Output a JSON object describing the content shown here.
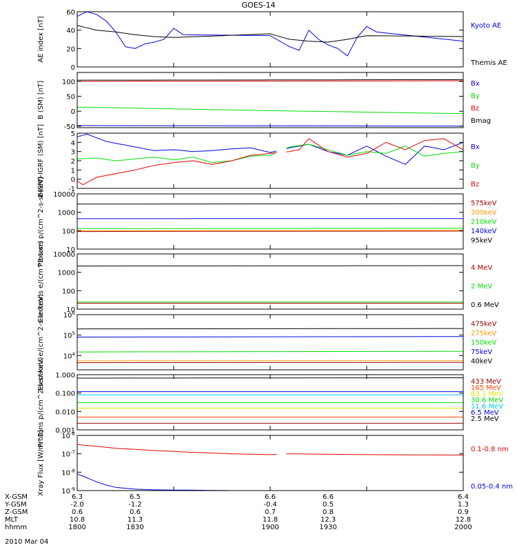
{
  "title": "GOES-14",
  "date": "2010 Mar 04",
  "colors": {
    "black": "#000000",
    "blue": "#0000e0",
    "green": "#00dd00",
    "red": "#e00000",
    "orange": "#ff9900",
    "cyan": "#00c8e8",
    "darkred": "#aa0000",
    "maroon": "#990000",
    "orangered": "#ff4400",
    "yellow": "#e6e600",
    "darkorange": "#ee7700"
  },
  "chart_data": [
    {
      "type": "line",
      "id": "ae",
      "ylabel": "AE index [nT]",
      "ylim": [
        0,
        60
      ],
      "log": false,
      "yticks": [
        0,
        20,
        40,
        60
      ],
      "yticklabels": [
        "0",
        "20",
        "40",
        "60"
      ],
      "xlim": [
        1800,
        2000
      ],
      "series": [
        {
          "name": "Kyoto AE",
          "color": "#0000e0",
          "x": [
            1800,
            1805,
            1810,
            1815,
            1820,
            1825,
            1830,
            1835,
            1840,
            1845,
            1850,
            1855,
            1900,
            1905,
            1910,
            1915,
            1920,
            1925,
            1930,
            1935,
            1940,
            1945,
            1950,
            1955,
            2000
          ],
          "y": [
            55,
            60,
            57,
            50,
            38,
            22,
            20,
            25,
            27,
            30,
            42,
            35,
            34,
            28,
            22,
            18,
            40,
            30,
            24,
            20,
            12,
            32,
            44,
            38,
            28
          ]
        },
        {
          "name": "Themis AE",
          "color": "#000000",
          "x": [
            1800,
            1810,
            1820,
            1830,
            1840,
            1850,
            1900,
            1910,
            1920,
            1930,
            1940,
            1950,
            2000
          ],
          "y": [
            45,
            40,
            38,
            35,
            33,
            32,
            36,
            30,
            28,
            27,
            30,
            34,
            33
          ]
        }
      ]
    },
    {
      "type": "line",
      "id": "b",
      "gap": [
        1904,
        1908
      ],
      "ylabel": "B (SM) [nT]",
      "ylim": [
        -55,
        130
      ],
      "log": false,
      "yticks": [
        -50,
        0,
        50,
        100
      ],
      "yticklabels": [
        "-50",
        "0",
        "50",
        "100"
      ],
      "xlim": [
        1800,
        2000
      ],
      "series": [
        {
          "name": "Bx",
          "color": "#0000e0",
          "x": [
            1800,
            2000
          ],
          "y": [
            -48,
            -50
          ]
        },
        {
          "name": "By",
          "color": "#00dd00",
          "x": [
            1800,
            1900,
            2000
          ],
          "y": [
            14,
            2,
            -8
          ]
        },
        {
          "name": "Bz",
          "color": "#e00000",
          "x": [
            1800,
            2000
          ],
          "y": [
            100,
            102
          ]
        },
        {
          "name": "Bmag",
          "color": "#000000",
          "x": [
            1800,
            2000
          ],
          "y": [
            104,
            106
          ]
        }
      ]
    },
    {
      "type": "line",
      "id": "bdiff",
      "gap": [
        1904,
        1908
      ],
      "ylabel": "B(SM)-IGRF (SM) [nT]",
      "ylim": [
        -1,
        5
      ],
      "log": false,
      "yticks": [
        -1,
        0,
        1,
        2,
        3,
        4,
        5
      ],
      "yticklabels": [
        "-1",
        "0",
        "1",
        "2",
        "3",
        "4",
        "5"
      ],
      "xlim": [
        1800,
        2000
      ],
      "series": [
        {
          "name": "Bx",
          "color": "#0000e0",
          "x": [
            1800,
            1805,
            1810,
            1815,
            1820,
            1830,
            1840,
            1850,
            1860,
            1870,
            1880,
            1890,
            1900,
            1910,
            1920,
            1930,
            1940,
            1950,
            1960,
            1970,
            1980,
            1990,
            2000
          ],
          "y": [
            4.6,
            4.9,
            4.5,
            4.1,
            3.9,
            3.5,
            3.1,
            3.2,
            3.0,
            3.1,
            3.3,
            3.4,
            2.9,
            3.4,
            3.8,
            3.0,
            2.6,
            3.6,
            2.5,
            1.6,
            3.6,
            3.2,
            4.0
          ]
        },
        {
          "name": "By",
          "color": "#00dd00",
          "x": [
            1800,
            1810,
            1820,
            1830,
            1840,
            1850,
            1860,
            1870,
            1880,
            1890,
            1900,
            1910,
            1920,
            1930,
            1940,
            1950,
            1960,
            1970,
            1980,
            1990,
            2000
          ],
          "y": [
            2.2,
            2.3,
            2.0,
            2.2,
            2.4,
            2.1,
            2.4,
            1.8,
            2.0,
            2.5,
            2.6,
            3.5,
            3.8,
            3.2,
            2.6,
            3.0,
            2.8,
            3.6,
            2.5,
            2.8,
            3.0
          ]
        },
        {
          "name": "Bz",
          "color": "#e00000",
          "x": [
            1800,
            1803,
            1810,
            1820,
            1830,
            1840,
            1850,
            1860,
            1870,
            1880,
            1890,
            1900,
            1910,
            1915,
            1920,
            1930,
            1940,
            1950,
            1960,
            1970,
            1980,
            1990,
            2000
          ],
          "y": [
            -0.2,
            -0.6,
            0.2,
            0.6,
            1.0,
            1.5,
            1.8,
            2.0,
            1.6,
            2.0,
            2.6,
            2.8,
            3.0,
            3.2,
            4.4,
            3.0,
            2.4,
            2.8,
            4.0,
            3.2,
            4.2,
            4.4,
            3.2
          ]
        }
      ]
    },
    {
      "type": "line",
      "id": "protons1",
      "gap": [
        1904,
        1908
      ],
      "ylabel": "Protons p/(cm^2-s-sr-keV)",
      "ylim": [
        10,
        10000
      ],
      "log": true,
      "yticks": [
        10,
        100,
        1000,
        10000
      ],
      "yticklabels": [
        "10",
        "100",
        "1000",
        "10000"
      ],
      "xlim": [
        1800,
        2000
      ],
      "series": [
        {
          "name": "575keV",
          "color": "#aa0000",
          "x": [
            1800,
            2000
          ],
          "y": [
            90,
            95
          ]
        },
        {
          "name": "300keV",
          "color": "#ff9900",
          "x": [
            1800,
            2000
          ],
          "y": [
            100,
            105
          ]
        },
        {
          "name": "210keV",
          "color": "#00dd00",
          "x": [
            1800,
            2000
          ],
          "y": [
            130,
            135
          ]
        },
        {
          "name": "140keV",
          "color": "#0000e0",
          "x": [
            1800,
            2000
          ],
          "y": [
            450,
            460
          ]
        },
        {
          "name": "95keV",
          "color": "#000000",
          "x": [
            1800,
            2000
          ],
          "y": [
            2800,
            2900
          ]
        }
      ]
    },
    {
      "type": "line",
      "id": "electrons1",
      "gap": [
        1904,
        1908
      ],
      "ylabel": "Electrons e/(cm^2-s-sr)",
      "ylim": [
        10,
        10000
      ],
      "log": true,
      "yticks": [
        10,
        100,
        1000,
        10000
      ],
      "yticklabels": [
        "10",
        "100",
        "1000",
        "10000"
      ],
      "xlim": [
        1800,
        2000
      ],
      "series": [
        {
          "name": "4 MeV",
          "color": "#aa0000",
          "x": [
            1800,
            2000
          ],
          "y": [
            21,
            21
          ]
        },
        {
          "name": "2 MeV",
          "color": "#00dd00",
          "x": [
            1800,
            2000
          ],
          "y": [
            24,
            24
          ]
        },
        {
          "name": "0.6 MeV",
          "color": "#000000",
          "x": [
            1800,
            2000
          ],
          "y": [
            2200,
            2300
          ]
        }
      ]
    },
    {
      "type": "line",
      "id": "electrons2",
      "gap": [
        1904,
        1908
      ],
      "ylabel": "Electrons e/(cm^2-s-sr-keV)",
      "ylim": [
        2000,
        1000000
      ],
      "log": true,
      "yticks": [
        10000,
        100000,
        1000000
      ],
      "yticklabels": [
        "10^4",
        "10^5",
        "10^6"
      ],
      "xlim": [
        1800,
        2000
      ],
      "series": [
        {
          "name": "475keV",
          "color": "#990000",
          "x": [
            1800,
            2000
          ],
          "y": [
            4500,
            4600
          ]
        },
        {
          "name": "275keV",
          "color": "#ff9900",
          "x": [
            1800,
            2000
          ],
          "y": [
            5500,
            5600
          ]
        },
        {
          "name": "150keV",
          "color": "#00dd00",
          "x": [
            1800,
            2000
          ],
          "y": [
            15000,
            16000
          ]
        },
        {
          "name": "75keV",
          "color": "#0000e0",
          "x": [
            1800,
            2000
          ],
          "y": [
            80000,
            85000
          ]
        },
        {
          "name": "40keV",
          "color": "#000000",
          "x": [
            1800,
            2000
          ],
          "y": [
            200000,
            210000
          ]
        }
      ]
    },
    {
      "type": "line",
      "id": "protons2",
      "gap": [
        1904,
        1908
      ],
      "ylabel": "Protons p/(cm^2-s-sr-keV)",
      "ylim": [
        0.001,
        1.0
      ],
      "log": true,
      "yticks": [
        0.001,
        0.01,
        0.1,
        1.0
      ],
      "yticklabels": [
        "0.001",
        "0.010",
        "0.100",
        "1.000"
      ],
      "xlim": [
        1800,
        2000
      ],
      "series": [
        {
          "name": "433 MeV",
          "color": "#990000",
          "x": [
            1800,
            2000
          ],
          "y": [
            0.0023,
            0.0023
          ]
        },
        {
          "name": "165 MeV",
          "color": "#ff4400",
          "x": [
            1800,
            2000
          ],
          "y": [
            0.005,
            0.005
          ]
        },
        {
          "name": "63.1 MeV",
          "color": "#e6e600",
          "x": [
            1800,
            2000
          ],
          "y": [
            0.015,
            0.015
          ]
        },
        {
          "name": "30.6 MeV",
          "color": "#00dd00",
          "x": [
            1800,
            2000
          ],
          "y": [
            0.03,
            0.03
          ]
        },
        {
          "name": "11.6 MeV",
          "color": "#00c8e8",
          "x": [
            1800,
            2000
          ],
          "y": [
            0.08,
            0.08
          ]
        },
        {
          "name": "6.5 MeV",
          "color": "#0000e0",
          "x": [
            1800,
            2000
          ],
          "y": [
            0.12,
            0.12
          ]
        },
        {
          "name": "2.5 MeV",
          "color": "#000000",
          "x": [
            1800,
            2000
          ],
          "y": [
            0.65,
            0.68
          ]
        }
      ]
    },
    {
      "type": "line",
      "id": "xray",
      "gap": [
        1904,
        1908
      ],
      "ylabel": "Xray Flux [W/m^2]",
      "ylim": [
        1e-09,
        1e-06
      ],
      "log": true,
      "yticks": [
        1e-09,
        1e-08,
        1e-07,
        1e-06
      ],
      "yticklabels": [
        "10^-9",
        "10^-8",
        "10^-7",
        "10^-6"
      ],
      "xlim": [
        1800,
        2000
      ],
      "series": [
        {
          "name": "0.1-0.8 nm",
          "color": "#e00000",
          "x": [
            1800,
            1820,
            1840,
            1860,
            1880,
            1900,
            1910,
            1930,
            1950,
            2000
          ],
          "y": [
            3.2e-07,
            2e-07,
            1.5e-07,
            1.2e-07,
            1e-07,
            9e-08,
            1e-07,
            9.5e-08,
            9e-08,
            8.5e-08
          ]
        },
        {
          "name": "0.05-0.4 nm",
          "color": "#0000e0",
          "x": [
            1800,
            1805,
            1810,
            1815,
            1820,
            1830,
            1840,
            1860,
            1880,
            1900,
            1920,
            1940,
            1960,
            1980,
            2000
          ],
          "y": [
            8e-09,
            5e-09,
            3e-09,
            2e-09,
            1.5e-09,
            1.2e-09,
            1.1e-09,
            1.05e-09,
            1e-09,
            1e-09,
            1e-09,
            1e-09,
            1e-09,
            1e-09,
            1e-09
          ]
        }
      ]
    }
  ],
  "footer": {
    "row_labels": [
      "X-GSM",
      "Y-GSM",
      "Z-GSM",
      "MLT",
      "hhmm"
    ],
    "ticks_x": [
      1800,
      1830,
      1900,
      1930,
      2000
    ],
    "rows": [
      [
        "6.3",
        "6.5",
        "6.6",
        "6.6",
        "6.4"
      ],
      [
        "-2.0",
        "-1.2",
        "-0.4",
        "0.5",
        "1.3"
      ],
      [
        "0.6",
        "0.6",
        "0.7",
        "0.8",
        "0.9"
      ],
      [
        "10.8",
        "11.3",
        "11.8",
        "12.3",
        "12.8"
      ],
      [
        "1800",
        "1830",
        "1900",
        "1930",
        "2000"
      ]
    ]
  }
}
